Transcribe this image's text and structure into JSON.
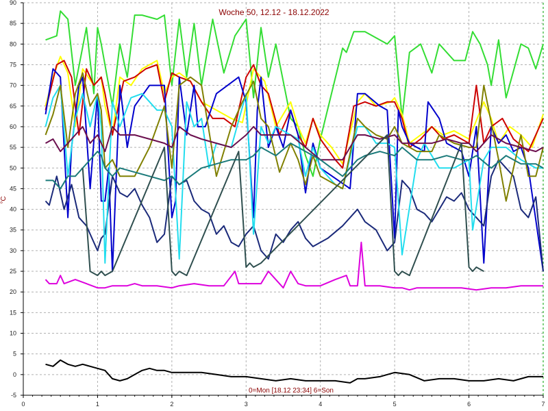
{
  "chart_data": {
    "type": "line",
    "title": "Woche 50, 12.12 - 18.12.2022",
    "ylabel": "°C",
    "xlabel": "0=Mon [18.12 23:34] 6=Son",
    "xlim": [
      0,
      7
    ],
    "ylim": [
      -5,
      90
    ],
    "x_ticks": [
      0,
      1,
      2,
      3,
      4,
      5,
      6,
      7
    ],
    "y_ticks": [
      -5,
      0,
      5,
      10,
      15,
      20,
      25,
      30,
      35,
      40,
      45,
      50,
      55,
      60,
      65,
      70,
      75,
      80,
      85,
      90
    ],
    "grid": true,
    "colors": {
      "background": "#ffffff",
      "grid": "#b0b0b0",
      "axis": "#000000",
      "marker": "#00a000"
    },
    "series": [
      {
        "color": "#33dd33",
        "x": [
          0.3,
          0.45,
          0.5,
          0.6,
          0.7,
          0.85,
          0.95,
          1.0,
          1.05,
          1.2,
          1.3,
          1.4,
          1.5,
          1.6,
          1.8,
          1.9,
          2.0,
          2.1,
          2.2,
          2.3,
          2.4,
          2.55,
          2.7,
          2.85,
          3.0,
          3.1,
          3.2,
          3.3,
          3.4,
          3.6,
          3.7,
          3.8,
          3.9,
          4.0,
          4.3,
          4.35,
          4.45,
          4.6,
          4.9,
          5.0,
          5.1,
          5.2,
          5.35,
          5.5,
          5.6,
          5.8,
          5.95,
          6.05,
          6.15,
          6.25,
          6.3,
          6.4,
          6.5,
          6.7,
          6.8,
          6.9,
          7.0
        ],
        "values": [
          81,
          82,
          88,
          86,
          70,
          84,
          68,
          84,
          80,
          65,
          80,
          72,
          87,
          87,
          86,
          87,
          70,
          86,
          72,
          85,
          70,
          86,
          73,
          82,
          86,
          67,
          84,
          72,
          80,
          62,
          60,
          53,
          48,
          57,
          79,
          78,
          83,
          83,
          80,
          82,
          62,
          78,
          80,
          73,
          80,
          76,
          76,
          83,
          80,
          75,
          70,
          81,
          67,
          80,
          79,
          74,
          80
        ]
      },
      {
        "color": "#ffff00",
        "x": [
          0.3,
          0.4,
          0.5,
          0.6,
          0.7,
          0.8,
          0.95,
          1.05,
          1.1,
          1.2,
          1.3,
          1.45,
          1.6,
          1.8,
          1.9,
          2.0,
          2.1,
          2.25,
          2.4,
          2.6,
          2.8,
          2.95,
          3.1,
          3.25,
          3.4,
          3.6,
          3.7,
          3.8,
          3.9,
          4.0,
          4.15,
          4.3,
          4.5,
          4.6,
          4.75,
          4.95,
          5.0,
          5.1,
          5.2,
          5.35,
          5.5,
          5.65,
          5.8,
          6.0,
          6.2,
          6.3,
          6.4,
          6.55,
          6.7,
          6.85,
          7.0
        ],
        "values": [
          65,
          72,
          77,
          73,
          60,
          74,
          70,
          72,
          65,
          58,
          72,
          70,
          74,
          76,
          68,
          72,
          73,
          71,
          66,
          64,
          62,
          61,
          74,
          71,
          60,
          66,
          60,
          56,
          62,
          58,
          55,
          51,
          66,
          68,
          65,
          66,
          67,
          63,
          56,
          58,
          60,
          58,
          59,
          57,
          66,
          62,
          56,
          60,
          58,
          55,
          63
        ]
      },
      {
        "color": "#cc0000",
        "x": [
          0.3,
          0.45,
          0.55,
          0.65,
          0.75,
          0.85,
          0.95,
          1.05,
          1.1,
          1.2,
          1.35,
          1.5,
          1.65,
          1.8,
          1.9,
          2.0,
          2.1,
          2.25,
          2.4,
          2.55,
          2.7,
          2.85,
          3.0,
          3.1,
          3.2,
          3.3,
          3.45,
          3.6,
          3.7,
          3.8,
          3.9,
          4.0,
          4.2,
          4.3,
          4.45,
          4.6,
          4.75,
          4.9,
          5.0,
          5.1,
          5.2,
          5.35,
          5.5,
          5.65,
          5.8,
          6.0,
          6.1,
          6.2,
          6.3,
          6.45,
          6.6,
          6.8,
          7.0
        ],
        "values": [
          64,
          75,
          76,
          72,
          58,
          74,
          70,
          72,
          68,
          58,
          71,
          72,
          74,
          75,
          66,
          73,
          72,
          71,
          66,
          62,
          62,
          60,
          72,
          75,
          70,
          68,
          58,
          64,
          58,
          55,
          62,
          57,
          52,
          50,
          65,
          66,
          65,
          66,
          66,
          62,
          55,
          57,
          60,
          57,
          58,
          56,
          70,
          56,
          60,
          62,
          57,
          54,
          62
        ]
      },
      {
        "color": "#0000cc",
        "x": [
          0.3,
          0.4,
          0.5,
          0.6,
          0.65,
          0.75,
          0.8,
          0.9,
          1.0,
          1.05,
          1.1,
          1.15,
          1.2,
          1.3,
          1.4,
          1.5,
          1.7,
          1.9,
          2.0,
          2.05,
          2.1,
          2.2,
          2.3,
          2.35,
          2.45,
          2.6,
          2.9,
          3.0,
          3.1,
          3.15,
          3.2,
          3.3,
          3.4,
          3.5,
          3.6,
          3.7,
          3.8,
          3.9,
          4.0,
          4.4,
          4.5,
          4.6,
          4.8,
          4.9,
          5.0,
          5.05,
          5.1,
          5.2,
          5.4,
          5.45,
          5.6,
          5.7,
          5.9,
          6.0,
          6.1,
          6.2,
          6.3,
          6.4,
          6.5,
          6.6,
          6.7,
          6.8,
          7.0
        ],
        "values": [
          63,
          74,
          72,
          38,
          55,
          70,
          72,
          45,
          68,
          42,
          42,
          50,
          25,
          70,
          55,
          65,
          70,
          70,
          38,
          42,
          72,
          58,
          70,
          60,
          60,
          68,
          72,
          66,
          38,
          64,
          72,
          55,
          60,
          55,
          64,
          58,
          44,
          56,
          50,
          45,
          68,
          68,
          65,
          64,
          33,
          64,
          60,
          56,
          54,
          66,
          62,
          56,
          54,
          48,
          60,
          27,
          60,
          56,
          58,
          54,
          55,
          50,
          25
        ]
      },
      {
        "color": "#1b2a7a",
        "x": [
          0.3,
          0.35,
          0.45,
          0.55,
          0.65,
          0.75,
          0.85,
          0.95,
          1.0,
          1.05,
          1.1,
          1.2,
          1.3,
          1.4,
          1.5,
          1.6,
          1.7,
          1.8,
          1.9,
          2.0,
          2.1,
          2.2,
          2.3,
          2.4,
          2.5,
          2.6,
          2.7,
          2.8,
          2.9,
          3.0,
          3.1,
          3.2,
          3.3,
          3.4,
          3.5,
          3.6,
          3.7,
          3.8,
          3.9,
          4.1,
          4.3,
          4.5,
          4.6,
          4.75,
          4.9,
          5.0,
          5.1,
          5.2,
          5.3,
          5.4,
          5.5,
          5.6,
          5.7,
          5.8,
          5.9,
          6.0,
          6.1,
          6.2,
          6.3,
          6.4,
          6.5,
          6.6,
          6.7,
          6.8,
          6.9,
          7.0
        ],
        "values": [
          42,
          41,
          48,
          40,
          46,
          38,
          36,
          32,
          30,
          33,
          34,
          48,
          44,
          43,
          45,
          41,
          38,
          32,
          34,
          48,
          46,
          47,
          42,
          40,
          39,
          34,
          36,
          32,
          31,
          34,
          36,
          30,
          28,
          34,
          32,
          35,
          37,
          33,
          31,
          33,
          36,
          40,
          37,
          35,
          30,
          32,
          47,
          45,
          40,
          39,
          37,
          40,
          43,
          42,
          44,
          40,
          38,
          36,
          48,
          52,
          50,
          48,
          40,
          38,
          43,
          25
        ]
      },
      {
        "color": "#22ddee",
        "x": [
          0.3,
          0.4,
          0.5,
          0.6,
          0.7,
          0.8,
          0.9,
          1.0,
          1.05,
          1.1,
          1.2,
          1.3,
          1.45,
          1.6,
          1.8,
          1.9,
          2.0,
          2.1,
          2.2,
          2.3,
          2.4,
          2.5,
          2.6,
          2.8,
          3.0,
          3.1,
          3.2,
          3.3,
          3.4,
          3.6,
          3.7,
          3.8,
          3.9,
          4.0,
          4.2,
          4.3,
          4.5,
          4.6,
          4.75,
          4.9,
          5.0,
          5.1,
          5.3,
          5.4,
          5.6,
          5.8,
          6.0,
          6.05,
          6.2,
          6.3,
          6.5,
          6.7,
          6.9,
          7.0
        ],
        "values": [
          60,
          67,
          70,
          48,
          62,
          68,
          60,
          68,
          60,
          27,
          66,
          60,
          67,
          68,
          64,
          64,
          60,
          28,
          66,
          60,
          62,
          50,
          56,
          55,
          68,
          34,
          60,
          56,
          60,
          58,
          57,
          48,
          55,
          50,
          46,
          45,
          60,
          60,
          56,
          56,
          55,
          29,
          52,
          56,
          50,
          50,
          52,
          35,
          52,
          55,
          55,
          52,
          50,
          50
        ]
      },
      {
        "color": "#808000",
        "x": [
          0.3,
          0.4,
          0.5,
          0.6,
          0.7,
          0.8,
          0.9,
          1.0,
          1.05,
          1.1,
          1.2,
          1.3,
          1.5,
          1.7,
          1.9,
          2.0,
          2.1,
          2.25,
          2.4,
          2.6,
          2.8,
          2.95,
          3.1,
          3.2,
          3.3,
          3.45,
          3.6,
          3.7,
          3.8,
          3.9,
          4.0,
          4.3,
          4.5,
          4.6,
          4.75,
          4.9,
          5.0,
          5.1,
          5.3,
          5.5,
          5.6,
          5.8,
          6.0,
          6.1,
          6.2,
          6.4,
          6.5,
          6.7,
          6.8,
          6.9,
          7.0
        ],
        "values": [
          58,
          63,
          70,
          55,
          68,
          73,
          65,
          68,
          64,
          50,
          52,
          48,
          48,
          55,
          65,
          50,
          70,
          72,
          70,
          48,
          60,
          66,
          71,
          62,
          60,
          49,
          56,
          52,
          46,
          53,
          48,
          45,
          62,
          60,
          58,
          57,
          60,
          56,
          54,
          54,
          58,
          56,
          55,
          55,
          70,
          52,
          42,
          58,
          48,
          48,
          55
        ]
      },
      {
        "color": "#6b0f4e",
        "x": [
          0.3,
          0.4,
          0.5,
          0.6,
          0.7,
          0.8,
          0.9,
          1.0,
          1.05,
          1.1,
          1.2,
          1.3,
          1.5,
          1.7,
          1.9,
          2.0,
          2.1,
          2.25,
          2.4,
          2.6,
          2.8,
          3.0,
          3.1,
          3.2,
          3.4,
          3.6,
          3.8,
          4.0,
          4.3,
          4.5,
          4.6,
          4.8,
          5.0,
          5.1,
          5.3,
          5.5,
          5.7,
          5.9,
          6.0,
          6.1,
          6.3,
          6.5,
          6.7,
          6.9,
          7.0
        ],
        "values": [
          56,
          57,
          54,
          56,
          58,
          60,
          56,
          58,
          56,
          54,
          60,
          58,
          58,
          57,
          56,
          55,
          60,
          58,
          57,
          56,
          55,
          58,
          60,
          58,
          58,
          58,
          55,
          52,
          52,
          58,
          58,
          57,
          58,
          56,
          56,
          56,
          57,
          56,
          56,
          54,
          58,
          56,
          55,
          54,
          55
        ]
      },
      {
        "color": "#1a7a7a",
        "x": [
          0.3,
          0.4,
          0.5,
          0.6,
          0.7,
          0.8,
          0.9,
          1.0,
          1.05,
          1.1,
          1.2,
          1.3,
          1.5,
          1.7,
          1.9,
          2.0,
          2.1,
          2.25,
          2.4,
          2.6,
          2.8,
          3.0,
          3.1,
          3.2,
          3.4,
          3.6,
          3.8,
          4.0,
          4.3,
          4.5,
          4.6,
          4.8,
          5.0,
          5.1,
          5.3,
          5.5,
          5.7,
          5.9,
          6.0,
          6.1,
          6.3,
          6.5,
          6.7,
          6.9,
          7.0
        ],
        "values": [
          47,
          47,
          45,
          48,
          48,
          50,
          52,
          54,
          53,
          50,
          48,
          50,
          49,
          48,
          47,
          48,
          46,
          48,
          50,
          51,
          52,
          52,
          53,
          55,
          53,
          56,
          54,
          52,
          48,
          52,
          53,
          54,
          53,
          55,
          52,
          52,
          53,
          52,
          52,
          53,
          50,
          53,
          51,
          51,
          50
        ]
      },
      {
        "color": "#2f4f4f",
        "x": [
          0.8,
          0.9,
          1.0,
          1.05,
          1.1,
          1.2,
          1.9,
          2.0,
          2.05,
          2.1,
          2.2,
          2.9,
          3.0,
          3.05,
          3.1,
          3.2,
          4.9,
          5.0,
          5.05,
          5.1,
          5.2,
          5.9,
          6.0,
          6.05,
          6.1,
          6.2
        ],
        "values": [
          50,
          25,
          24,
          25,
          24,
          25,
          55,
          25,
          24,
          25,
          24,
          54,
          26,
          27,
          26,
          27,
          58,
          25,
          24,
          25,
          24,
          56,
          26,
          25,
          26,
          25
        ]
      },
      {
        "color": "#dd00dd",
        "x": [
          0.3,
          0.35,
          0.45,
          0.5,
          0.55,
          0.7,
          0.85,
          1.0,
          1.1,
          1.2,
          1.4,
          1.5,
          1.6,
          1.8,
          2.0,
          2.1,
          2.3,
          2.5,
          2.7,
          2.85,
          2.9,
          3.0,
          3.2,
          3.3,
          3.5,
          3.6,
          3.7,
          3.8,
          3.9,
          4.0,
          4.2,
          4.35,
          4.4,
          4.5,
          4.55,
          4.6,
          4.8,
          5.0,
          5.1,
          5.2,
          5.3,
          5.5,
          5.7,
          5.9,
          6.1,
          6.3,
          6.5,
          6.7,
          6.9,
          7.0
        ],
        "values": [
          23,
          22,
          22,
          24,
          22,
          23,
          22,
          21,
          21,
          21.5,
          21.5,
          22,
          21.5,
          21.5,
          21,
          21.5,
          22,
          21.5,
          21.5,
          25,
          22,
          22,
          22,
          25,
          21,
          25,
          22,
          21.5,
          21.5,
          21.5,
          23,
          24,
          21.5,
          21.5,
          32,
          21.5,
          21.5,
          21,
          21,
          20.5,
          21,
          21,
          21,
          21,
          20.5,
          21,
          21,
          21.5,
          21.5,
          21.5
        ]
      },
      {
        "color": "#000000",
        "x": [
          0.3,
          0.4,
          0.5,
          0.6,
          0.7,
          0.8,
          0.9,
          1.0,
          1.1,
          1.2,
          1.3,
          1.4,
          1.5,
          1.6,
          1.7,
          1.8,
          1.9,
          2.0,
          2.2,
          2.4,
          2.6,
          2.8,
          3.0,
          3.2,
          3.4,
          3.6,
          3.8,
          4.0,
          4.2,
          4.4,
          4.5,
          4.6,
          4.8,
          5.0,
          5.2,
          5.4,
          5.6,
          5.8,
          6.0,
          6.2,
          6.4,
          6.6,
          6.8,
          7.0
        ],
        "values": [
          2.5,
          2,
          3.5,
          2.5,
          2,
          2.5,
          2,
          1.5,
          1,
          -1,
          -1.5,
          -1,
          0,
          1,
          1.5,
          1,
          1,
          0.5,
          0.5,
          0.5,
          0,
          -0.5,
          -0.5,
          -1,
          -1.5,
          -1,
          -1.5,
          -1.5,
          -1.5,
          -2,
          -1,
          -1,
          -0.5,
          0.5,
          0,
          -1.5,
          -1,
          -1,
          -1.5,
          -1.5,
          -1,
          -1.5,
          -0.5,
          -0.5
        ]
      }
    ]
  }
}
